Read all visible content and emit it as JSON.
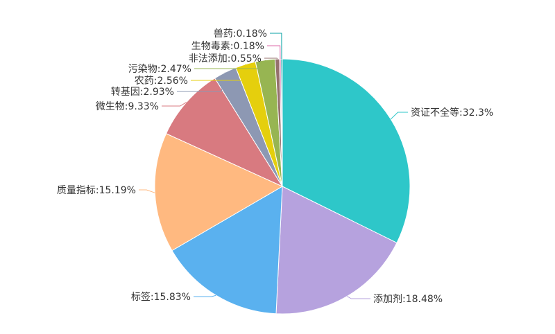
{
  "chart_data": {
    "type": "pie",
    "title": "",
    "start_angle_deg": 90,
    "direction": "clockwise",
    "slices": [
      {
        "name": "资证不全等",
        "value": 32.3,
        "label": "资证不全等:32.3%",
        "color": "#2ec7c9"
      },
      {
        "name": "添加剂",
        "value": 18.48,
        "label": "添加剂:18.48%",
        "color": "#b6a2de"
      },
      {
        "name": "标签",
        "value": 15.83,
        "label": "标签:15.83%",
        "color": "#5ab1ef"
      },
      {
        "name": "质量指标",
        "value": 15.19,
        "label": "质量指标:15.19%",
        "color": "#ffb980"
      },
      {
        "name": "微生物",
        "value": 9.33,
        "label": "微生物:9.33%",
        "color": "#d87a80"
      },
      {
        "name": "转基因",
        "value": 2.93,
        "label": "转基因:2.93%",
        "color": "#8d98b3"
      },
      {
        "name": "农药",
        "value": 2.56,
        "label": "农药:2.56%",
        "color": "#e5cf0d"
      },
      {
        "name": "污染物",
        "value": 2.47,
        "label": "污染物:2.47%",
        "color": "#97b552"
      },
      {
        "name": "非法添加",
        "value": 0.55,
        "label": "非法添加:0.55%",
        "color": "#95706d"
      },
      {
        "name": "生物毒素",
        "value": 0.18,
        "label": "生物毒素:0.18%",
        "color": "#dc69aa"
      },
      {
        "name": "兽药",
        "value": 0.18,
        "label": "兽药:0.18%",
        "color": "#07a2a4"
      }
    ]
  }
}
